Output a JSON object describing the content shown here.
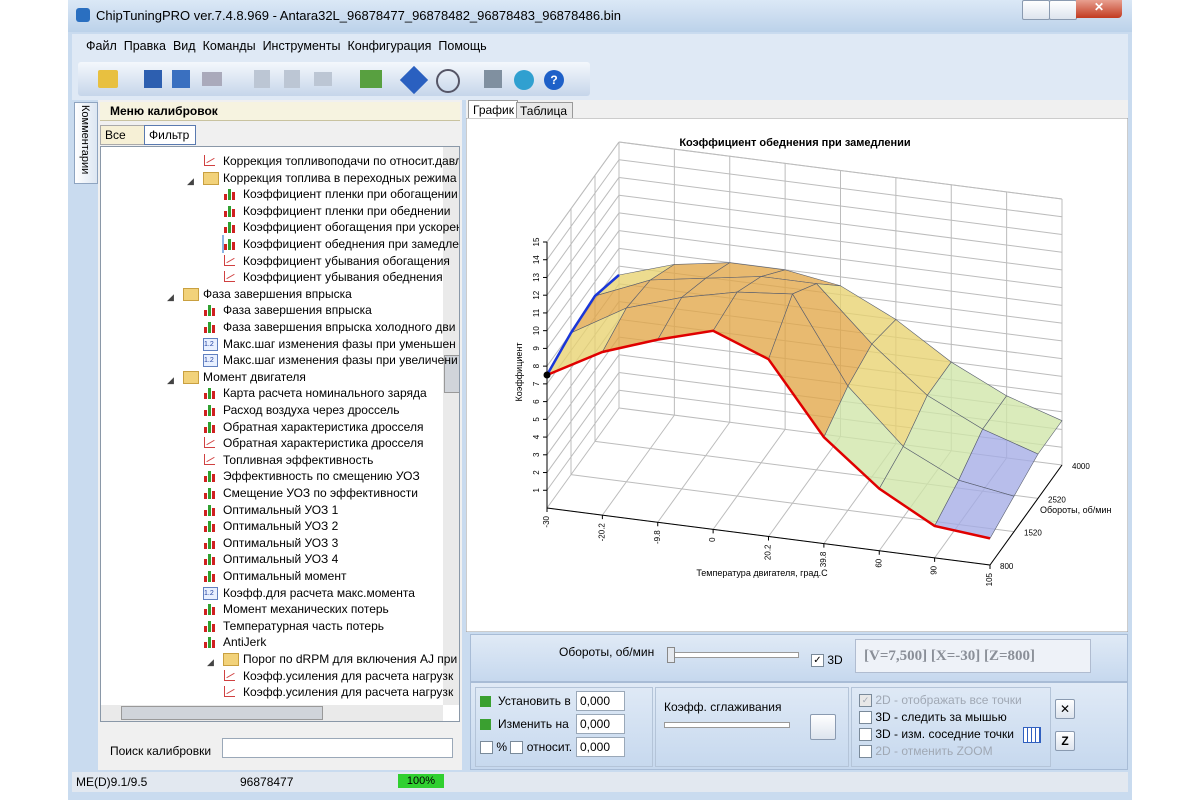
{
  "window": {
    "title": "ChipTuningPRO ver.7.4.8.969 - Antara32L_96878477_96878482_96878483_96878486.bin"
  },
  "menu": [
    "Файл",
    "Правка",
    "Вид",
    "Команды",
    "Инструменты",
    "Конфигурация",
    "Помощь"
  ],
  "side_tab": "Комментарии",
  "calibration_panel": {
    "title": "Меню калибровок",
    "tabs": [
      "Все",
      "Фильтр"
    ],
    "tree": [
      "Коррекция топливоподачи по относит.давл",
      "Коррекция топлива в переходных режима",
      "Коэффициент пленки при обогащении",
      "Коэффициент пленки при обеднении",
      "Коэффициент обогащения при ускорен",
      "Коэффициент обеднения при замедле",
      "Коэффициент убывания обогащения",
      "Коэффициент убывания обеднения",
      "Фаза завершения впрыска",
      "Фаза завершения впрыска",
      "Фаза завершения впрыска холодного дви",
      "Макс.шаг изменения фазы при уменьшен",
      "Макс.шаг изменения фазы при увеличени",
      "Момент двигателя",
      "Карта расчета номинального заряда",
      "Расход воздуха через дроссель",
      "Обратная характеристика дросселя",
      "Обратная характеристика дросселя",
      "Топливная эффективность",
      "Эффективность по смещению УОЗ",
      "Смещение УОЗ по эффективности",
      "Оптимальный УОЗ 1",
      "Оптимальный УОЗ 2",
      "Оптимальный УОЗ 3",
      "Оптимальный УОЗ 4",
      "Оптимальный момент",
      "Коэфф.для расчета макс.момента",
      "Момент механических потерь",
      "Температурная часть потерь",
      "AntiJerk",
      "Порог по dRPM для включения AJ при",
      "Коэфф.усиления для расчета нагрузк",
      "Коэфф.усиления для расчета нагрузк"
    ],
    "search_label": "Поиск калибровки"
  },
  "view_tabs": [
    "График",
    "Таблица"
  ],
  "chart_data": {
    "type": "surface3d",
    "title": "Коэффициент обеднения при замедлении",
    "x_label": "Температура двигателя, град.С",
    "y_label": "Коэффициент",
    "z_label": "Обороты, об/мин",
    "categories": [
      "-30",
      "-20.2",
      "-9.8",
      "0",
      "20.2",
      "39.8",
      "60",
      "90",
      "105"
    ],
    "z_categories": [
      "800",
      "1520",
      "2520",
      "4000"
    ],
    "values": [
      [
        7.5,
        9.2,
        10.3,
        11.2,
        10,
        6,
        3.5,
        1.8,
        1.5
      ],
      [
        8,
        9.8,
        10.8,
        11.5,
        11.8,
        7,
        4,
        2.5,
        2
      ],
      [
        8.2,
        9.5,
        10,
        10.5,
        10.5,
        7.5,
        5,
        3.5,
        2.5
      ],
      [
        7.5,
        8.5,
        9,
        9,
        8.5,
        7,
        5,
        3.5,
        2.5
      ]
    ],
    "ylim": [
      0,
      15
    ],
    "yticks": [
      1,
      2,
      3,
      4,
      5,
      6,
      7,
      8,
      9,
      10,
      11,
      12,
      13,
      14,
      15
    ],
    "colormap": [
      "#a4ace6",
      "#cfe6a8",
      "#e8d270",
      "#e2a648"
    ],
    "front_line_color": "#e00000",
    "side_line_color": "#1a36d8"
  },
  "controls": {
    "rpm_label": "Обороты, об/мин",
    "check_3d": "3D",
    "readout": "[V=7,500] [X=-30] [Z=800]",
    "set_label": "Установить в",
    "set_value": "0,000",
    "change_label": "Изменить на",
    "change_value": "0,000",
    "percent": "%",
    "relative": "относит.",
    "relative_value": "0,000",
    "smoothing_label": "Коэфф. сглаживания",
    "options": [
      "2D - отображать все точки",
      "3D - следить за мышью",
      "3D - изм. соседние точки",
      "2D - отменить ZOOM"
    ]
  },
  "status": [
    "ME(D)9.1/9.5",
    "96878477",
    "100%"
  ]
}
